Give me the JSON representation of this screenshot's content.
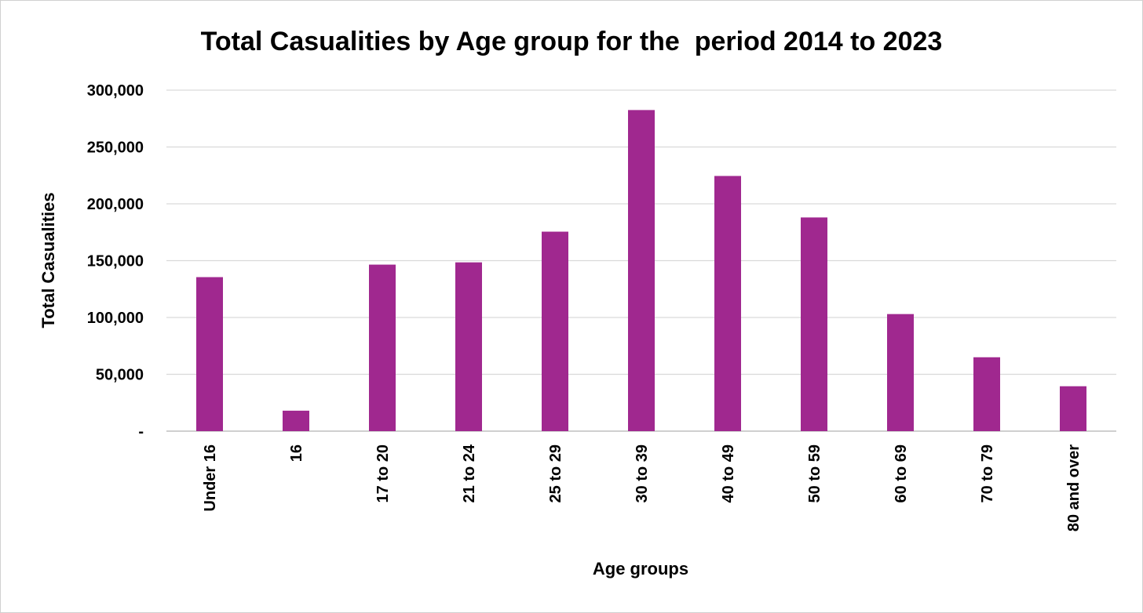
{
  "chart_data": {
    "type": "bar",
    "title": "Total Casualities by Age group for the  period 2014 to 2023",
    "xlabel": "Age groups",
    "ylabel": "Total Casualities",
    "categories": [
      "Under 16",
      "16",
      "17 to 20",
      "21 to 24",
      "25 to 29",
      "30 to 39",
      "40 to 49",
      "50 to 59",
      "60 to 69",
      "70 to 79",
      "80 and over"
    ],
    "values": [
      135500,
      18000,
      146500,
      148500,
      175500,
      282500,
      224500,
      188000,
      103000,
      65000,
      39500
    ],
    "ylim": [
      0,
      300000
    ],
    "yticks": [
      0,
      50000,
      100000,
      150000,
      200000,
      250000,
      300000
    ],
    "ytick_labels": [
      "-",
      "50,000",
      "100,000",
      "150,000",
      "200,000",
      "250,000",
      "300,000"
    ],
    "grid": true,
    "legend": "none",
    "colors": {
      "bar": "#A0288F",
      "grid": "#d9d9d9",
      "axis": "#bfbfbf",
      "text": "#000000"
    }
  }
}
